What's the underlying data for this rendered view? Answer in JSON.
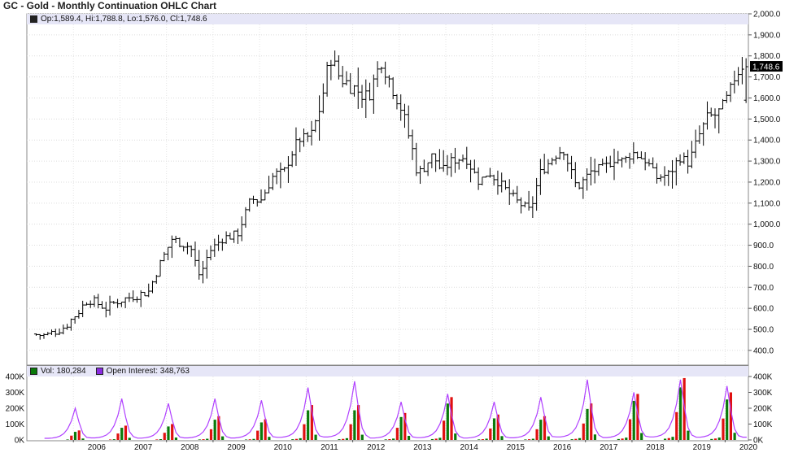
{
  "title": "GC - Gold - Monthly Continuation OHLC Chart",
  "info": {
    "ohlc": "Op:1,589.4, Hi:1,788.8, Lo:1,576.0, Cl:1,748.6",
    "vol": "Vol: 180,284",
    "oi": "Open Interest: 348,763",
    "last_price": "1,748.6"
  },
  "colors": {
    "bar": "#000000",
    "vol_up": "#0a7a0a",
    "vol_down": "#e01010",
    "oi_line": "#b040ff",
    "header_band": "#e6e6f7",
    "last_box": "#000000"
  },
  "chart_data": [
    {
      "type": "ohlc",
      "title": "GC - Gold - Monthly Continuation OHLC Chart",
      "y_tick_labels": [
        "400.0",
        "500.0",
        "600.0",
        "700.0",
        "800.0",
        "900.0",
        "1,000.0",
        "1,100.0",
        "1,200.0",
        "1,300.0",
        "1,400.0",
        "1,500.0",
        "1,600.0",
        "1,700.0",
        "1,800.0",
        "1,900.0",
        "2,000.0"
      ],
      "ylim": [
        330,
        2000
      ],
      "x_tick_labels": [
        "2006",
        "2007",
        "2008",
        "2009",
        "2010",
        "2011",
        "2012",
        "2013",
        "2014",
        "2015",
        "2016",
        "2017",
        "2018",
        "2019",
        "2020"
      ],
      "x_range": [
        2005.0,
        2020.5
      ],
      "last": {
        "open": 1589.4,
        "high": 1788.8,
        "low": 1576.0,
        "close": 1748.6
      },
      "closes": [
        {
          "t": 2005.2,
          "v": 478
        },
        {
          "t": 2005.5,
          "v": 470
        },
        {
          "t": 2005.9,
          "v": 513
        },
        {
          "t": 2006.2,
          "v": 587
        },
        {
          "t": 2006.4,
          "v": 645
        },
        {
          "t": 2006.8,
          "v": 600
        },
        {
          "t": 2007.0,
          "v": 632
        },
        {
          "t": 2007.4,
          "v": 660
        },
        {
          "t": 2007.7,
          "v": 680
        },
        {
          "t": 2007.9,
          "v": 790
        },
        {
          "t": 2008.2,
          "v": 930
        },
        {
          "t": 2008.6,
          "v": 890
        },
        {
          "t": 2008.8,
          "v": 750
        },
        {
          "t": 2009.0,
          "v": 870
        },
        {
          "t": 2009.3,
          "v": 935
        },
        {
          "t": 2009.6,
          "v": 950
        },
        {
          "t": 2009.9,
          "v": 1120
        },
        {
          "t": 2010.1,
          "v": 1110
        },
        {
          "t": 2010.4,
          "v": 1240
        },
        {
          "t": 2010.6,
          "v": 1245
        },
        {
          "t": 2010.9,
          "v": 1400
        },
        {
          "t": 2011.2,
          "v": 1420
        },
        {
          "t": 2011.4,
          "v": 1570
        },
        {
          "t": 2011.6,
          "v": 1800
        },
        {
          "t": 2011.8,
          "v": 1700
        },
        {
          "t": 2012.1,
          "v": 1650
        },
        {
          "t": 2012.4,
          "v": 1600
        },
        {
          "t": 2012.7,
          "v": 1780
        },
        {
          "t": 2012.9,
          "v": 1670
        },
        {
          "t": 2013.1,
          "v": 1570
        },
        {
          "t": 2013.3,
          "v": 1410
        },
        {
          "t": 2013.5,
          "v": 1230
        },
        {
          "t": 2013.8,
          "v": 1330
        },
        {
          "t": 2014.0,
          "v": 1250
        },
        {
          "t": 2014.2,
          "v": 1300
        },
        {
          "t": 2014.5,
          "v": 1320
        },
        {
          "t": 2014.8,
          "v": 1200
        },
        {
          "t": 2015.0,
          "v": 1250
        },
        {
          "t": 2015.3,
          "v": 1180
        },
        {
          "t": 2015.6,
          "v": 1110
        },
        {
          "t": 2015.9,
          "v": 1060
        },
        {
          "t": 2016.1,
          "v": 1240
        },
        {
          "t": 2016.4,
          "v": 1320
        },
        {
          "t": 2016.6,
          "v": 1360
        },
        {
          "t": 2016.9,
          "v": 1170
        },
        {
          "t": 2017.2,
          "v": 1250
        },
        {
          "t": 2017.5,
          "v": 1270
        },
        {
          "t": 2017.7,
          "v": 1310
        },
        {
          "t": 2017.9,
          "v": 1300
        },
        {
          "t": 2018.1,
          "v": 1340
        },
        {
          "t": 2018.4,
          "v": 1300
        },
        {
          "t": 2018.6,
          "v": 1220
        },
        {
          "t": 2018.9,
          "v": 1240
        },
        {
          "t": 2019.1,
          "v": 1320
        },
        {
          "t": 2019.3,
          "v": 1290
        },
        {
          "t": 2019.5,
          "v": 1410
        },
        {
          "t": 2019.7,
          "v": 1510
        },
        {
          "t": 2019.9,
          "v": 1520
        },
        {
          "t": 2020.1,
          "v": 1590
        },
        {
          "t": 2020.3,
          "v": 1700
        },
        {
          "t": 2020.45,
          "v": 1748.6
        }
      ]
    },
    {
      "type": "bar",
      "series": [
        {
          "name": "Vol",
          "last": 180284
        },
        {
          "name": "Open Interest",
          "last": 348763
        }
      ],
      "y_tick_labels": [
        "0K",
        "100K",
        "200K",
        "300K",
        "400K"
      ],
      "ylim": [
        0,
        400000
      ],
      "x_tick_labels": [
        "2006",
        "2007",
        "2008",
        "2009",
        "2010",
        "2011",
        "2012",
        "2013",
        "2014",
        "2015",
        "2016",
        "2017",
        "2018",
        "2019",
        "2020"
      ],
      "oi_peaks": [
        {
          "year": 2005,
          "peak": 200000
        },
        {
          "year": 2006,
          "peak": 260000
        },
        {
          "year": 2007,
          "peak": 230000
        },
        {
          "year": 2008,
          "peak": 260000
        },
        {
          "year": 2009,
          "peak": 250000
        },
        {
          "year": 2010,
          "peak": 330000
        },
        {
          "year": 2011,
          "peak": 370000
        },
        {
          "year": 2012,
          "peak": 240000
        },
        {
          "year": 2013,
          "peak": 290000
        },
        {
          "year": 2014,
          "peak": 240000
        },
        {
          "year": 2015,
          "peak": 270000
        },
        {
          "year": 2016,
          "peak": 380000
        },
        {
          "year": 2017,
          "peak": 300000
        },
        {
          "year": 2018,
          "peak": 380000
        },
        {
          "year": 2019,
          "peak": 340000
        },
        {
          "year": 2020,
          "peak": 350000
        }
      ],
      "vol_peaks": [
        {
          "year": 2005,
          "peak": 60000
        },
        {
          "year": 2006,
          "peak": 90000
        },
        {
          "year": 2007,
          "peak": 100000
        },
        {
          "year": 2008,
          "peak": 150000
        },
        {
          "year": 2009,
          "peak": 130000
        },
        {
          "year": 2010,
          "peak": 220000
        },
        {
          "year": 2011,
          "peak": 220000
        },
        {
          "year": 2012,
          "peak": 170000
        },
        {
          "year": 2013,
          "peak": 270000
        },
        {
          "year": 2014,
          "peak": 160000
        },
        {
          "year": 2015,
          "peak": 150000
        },
        {
          "year": 2016,
          "peak": 230000
        },
        {
          "year": 2017,
          "peak": 290000
        },
        {
          "year": 2018,
          "peak": 390000
        },
        {
          "year": 2019,
          "peak": 300000
        },
        {
          "year": 2020,
          "peak": 180000
        }
      ]
    }
  ]
}
